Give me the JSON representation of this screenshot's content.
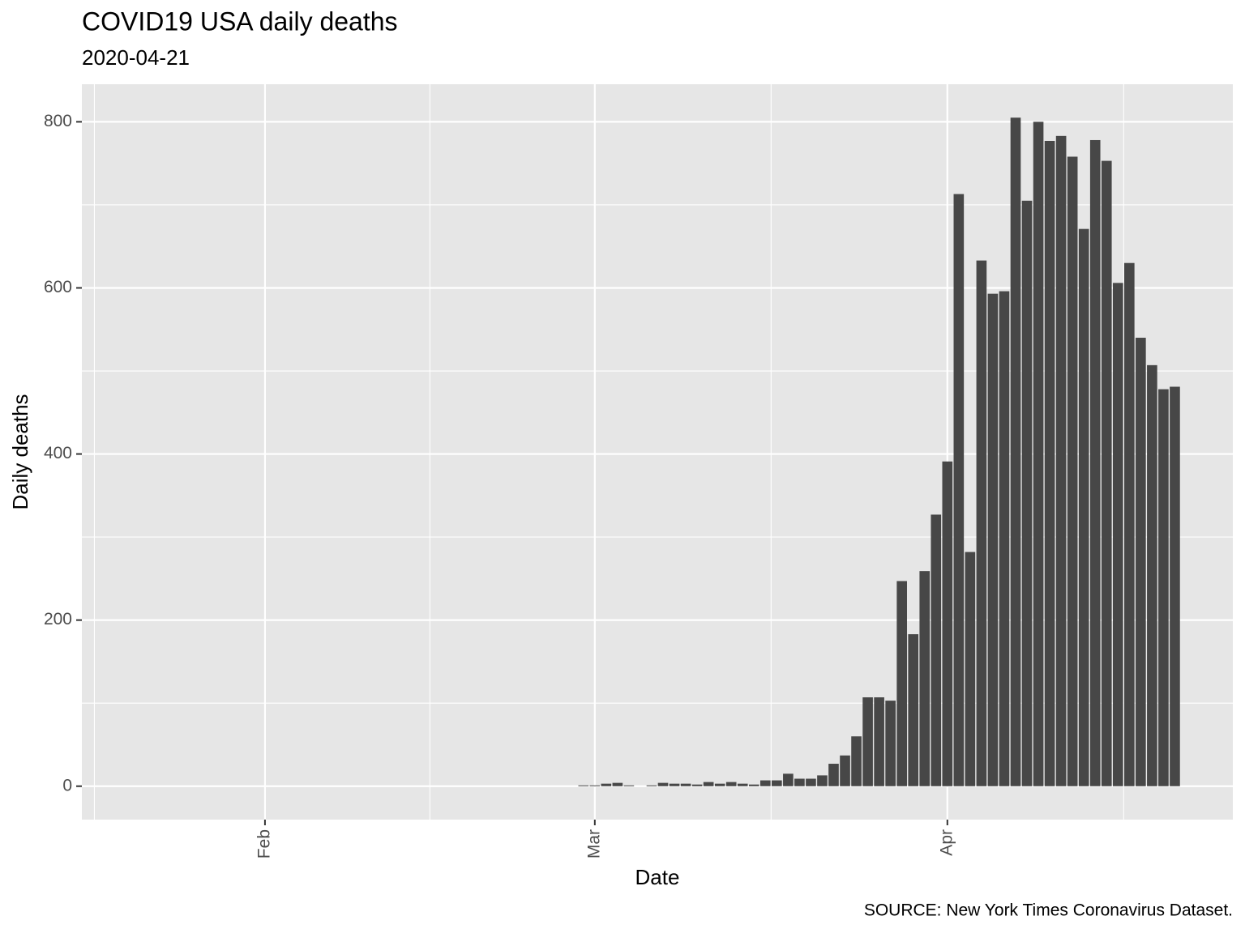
{
  "chart_data": {
    "type": "bar",
    "title": "COVID19 USA daily deaths",
    "subtitle": "2020-04-21",
    "caption": "SOURCE: New York Times Coronavirus Dataset.",
    "x_label": "Date",
    "y_label": "Daily deaths",
    "categories": [
      null,
      null,
      null,
      null,
      null,
      null,
      null,
      null,
      null,
      null,
      null,
      "Feb",
      null,
      null,
      null,
      null,
      null,
      null,
      null,
      null,
      null,
      null,
      null,
      null,
      null,
      null,
      null,
      null,
      null,
      null,
      null,
      null,
      null,
      null,
      null,
      null,
      null,
      null,
      null,
      null,
      "Mar",
      null,
      null,
      null,
      null,
      null,
      null,
      null,
      null,
      null,
      null,
      null,
      null,
      null,
      null,
      null,
      null,
      null,
      null,
      null,
      null,
      null,
      null,
      null,
      null,
      null,
      null,
      null,
      null,
      null,
      null,
      "Apr",
      null,
      null,
      null,
      null,
      null,
      null,
      null,
      null,
      null,
      null,
      null,
      null,
      null,
      null,
      null,
      null,
      null,
      null,
      null,
      null
    ],
    "values": [
      0,
      0,
      0,
      0,
      0,
      0,
      0,
      0,
      0,
      0,
      0,
      0,
      0,
      0,
      0,
      0,
      0,
      0,
      0,
      0,
      0,
      0,
      0,
      0,
      0,
      0,
      0,
      0,
      0,
      0,
      0,
      0,
      0,
      0,
      0,
      0,
      0,
      0,
      0,
      1,
      1,
      3,
      4,
      1,
      0,
      1,
      4,
      3,
      3,
      2,
      5,
      3,
      5,
      3,
      2,
      7,
      7,
      15,
      9,
      9,
      13,
      27,
      37,
      60,
      107,
      107,
      103,
      247,
      183,
      259,
      327,
      391,
      713,
      282,
      633,
      593,
      596,
      805,
      705,
      800,
      777,
      783,
      758,
      671,
      778,
      753,
      606,
      630,
      540,
      507,
      478,
      481
    ],
    "color": "#474747",
    "ylim": [
      -40.25,
      845.25
    ],
    "yticks": [
      0,
      200,
      400,
      600,
      800
    ],
    "grid": true
  }
}
